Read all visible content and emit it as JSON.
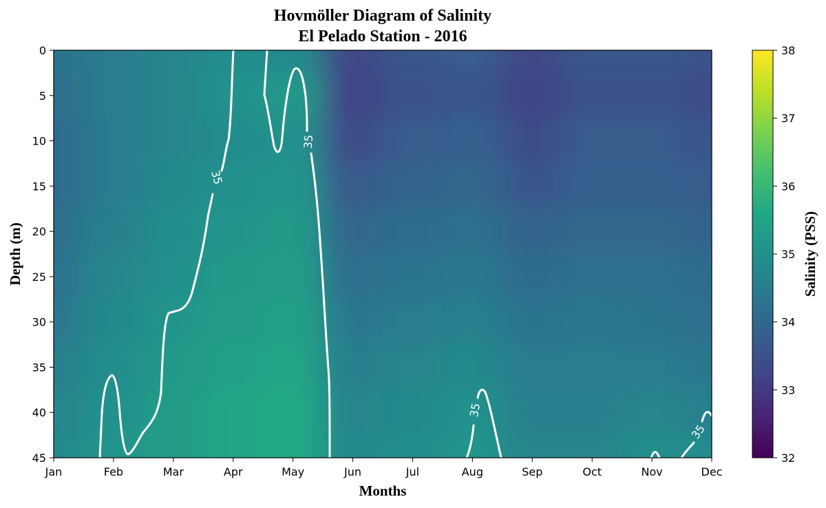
{
  "chart_data": {
    "type": "heatmap",
    "title_line1": "Hovmöller Diagram of Salinity",
    "title_line2": "El Pelado Station - 2016",
    "xlabel": "Months",
    "ylabel": "Depth (m)",
    "colorbar_label": "Salinity (PSS)",
    "colormap": "viridis",
    "x_ticks": [
      "Jan",
      "Feb",
      "Mar",
      "Apr",
      "May",
      "Jun",
      "Jul",
      "Aug",
      "Sep",
      "Oct",
      "Nov",
      "Dec"
    ],
    "y_ticks": [
      0,
      5,
      10,
      15,
      20,
      25,
      30,
      35,
      40,
      45
    ],
    "ylim": [
      45,
      0
    ],
    "clim": [
      32,
      38
    ],
    "colorbar_ticks": [
      32,
      33,
      34,
      35,
      36,
      37,
      38
    ],
    "contour": {
      "level": 35,
      "label": "35",
      "color": "#ffffff"
    },
    "salinity_grid": {
      "depths": [
        0,
        5,
        10,
        15,
        20,
        25,
        30,
        35,
        40,
        45
      ],
      "months": [
        "Jan",
        "Feb",
        "Mar",
        "Apr",
        "May",
        "Jun",
        "Jul",
        "Aug",
        "Sep",
        "Oct",
        "Nov",
        "Dec"
      ],
      "values": [
        [
          34.3,
          34.5,
          34.7,
          34.9,
          34.8,
          33.3,
          33.6,
          33.7,
          33.3,
          33.6,
          33.6,
          33.5
        ],
        [
          34.2,
          34.5,
          34.7,
          35.0,
          35.2,
          33.2,
          33.5,
          33.6,
          33.2,
          33.5,
          33.5,
          33.4
        ],
        [
          34.1,
          34.5,
          34.7,
          34.9,
          35.0,
          33.4,
          33.7,
          33.8,
          33.4,
          33.7,
          33.7,
          33.6
        ],
        [
          34.1,
          34.5,
          34.8,
          35.0,
          35.1,
          33.7,
          33.9,
          34.0,
          33.6,
          33.8,
          33.8,
          33.7
        ],
        [
          34.2,
          34.6,
          34.9,
          35.1,
          35.2,
          34.0,
          34.1,
          34.2,
          33.9,
          34.0,
          34.0,
          33.9
        ],
        [
          34.3,
          34.7,
          35.0,
          35.2,
          35.3,
          34.2,
          34.3,
          34.4,
          34.1,
          34.2,
          34.2,
          34.1
        ],
        [
          34.4,
          34.8,
          35.1,
          35.3,
          35.4,
          34.4,
          34.5,
          34.6,
          34.3,
          34.4,
          34.3,
          34.2
        ],
        [
          34.6,
          34.9,
          35.2,
          35.4,
          35.5,
          34.6,
          34.7,
          34.8,
          34.5,
          34.5,
          34.5,
          34.4
        ],
        [
          34.7,
          35.0,
          35.3,
          35.5,
          35.6,
          34.7,
          34.8,
          35.0,
          34.6,
          34.6,
          34.7,
          34.6
        ],
        [
          34.8,
          35.1,
          35.3,
          35.5,
          35.6,
          34.8,
          34.9,
          35.1,
          34.7,
          34.7,
          34.9,
          34.9
        ]
      ]
    }
  }
}
